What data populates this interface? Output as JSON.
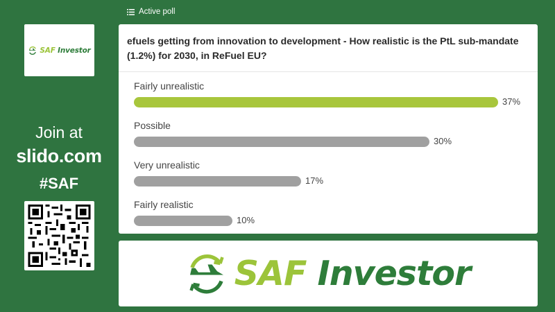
{
  "sidebar": {
    "logo": {
      "part1": "SAF",
      "part2": "Investor",
      "icon": "plane-cycle-icon"
    },
    "join_line1": "Join at",
    "join_url": "slido.com",
    "event_code": "#SAF",
    "qr_icon": "qr-code-icon"
  },
  "header": {
    "icon": "list-icon",
    "label": "Active poll"
  },
  "poll": {
    "question": "efuels getting from innovation to development - How realistic is the PtL sub-mandate (1.2%) for 2030, in ReFuel EU?",
    "options": [
      {
        "label": "Fairly unrealistic",
        "percent": 37,
        "percent_text": "37%"
      },
      {
        "label": "Possible",
        "percent": 30,
        "percent_text": "30%"
      },
      {
        "label": "Very unrealistic",
        "percent": 17,
        "percent_text": "17%"
      },
      {
        "label": "Fairly realistic",
        "percent": 10,
        "percent_text": "10%"
      }
    ]
  },
  "banner": {
    "part1": "SAF",
    "part2": "Investor",
    "icon": "plane-cycle-icon"
  },
  "colors": {
    "background": "#2f7440",
    "leader_bar": "#a8c63c",
    "other_bar": "#a0a0a0",
    "brand_lime": "#9cc43a",
    "brand_green": "#2e7d3a"
  }
}
